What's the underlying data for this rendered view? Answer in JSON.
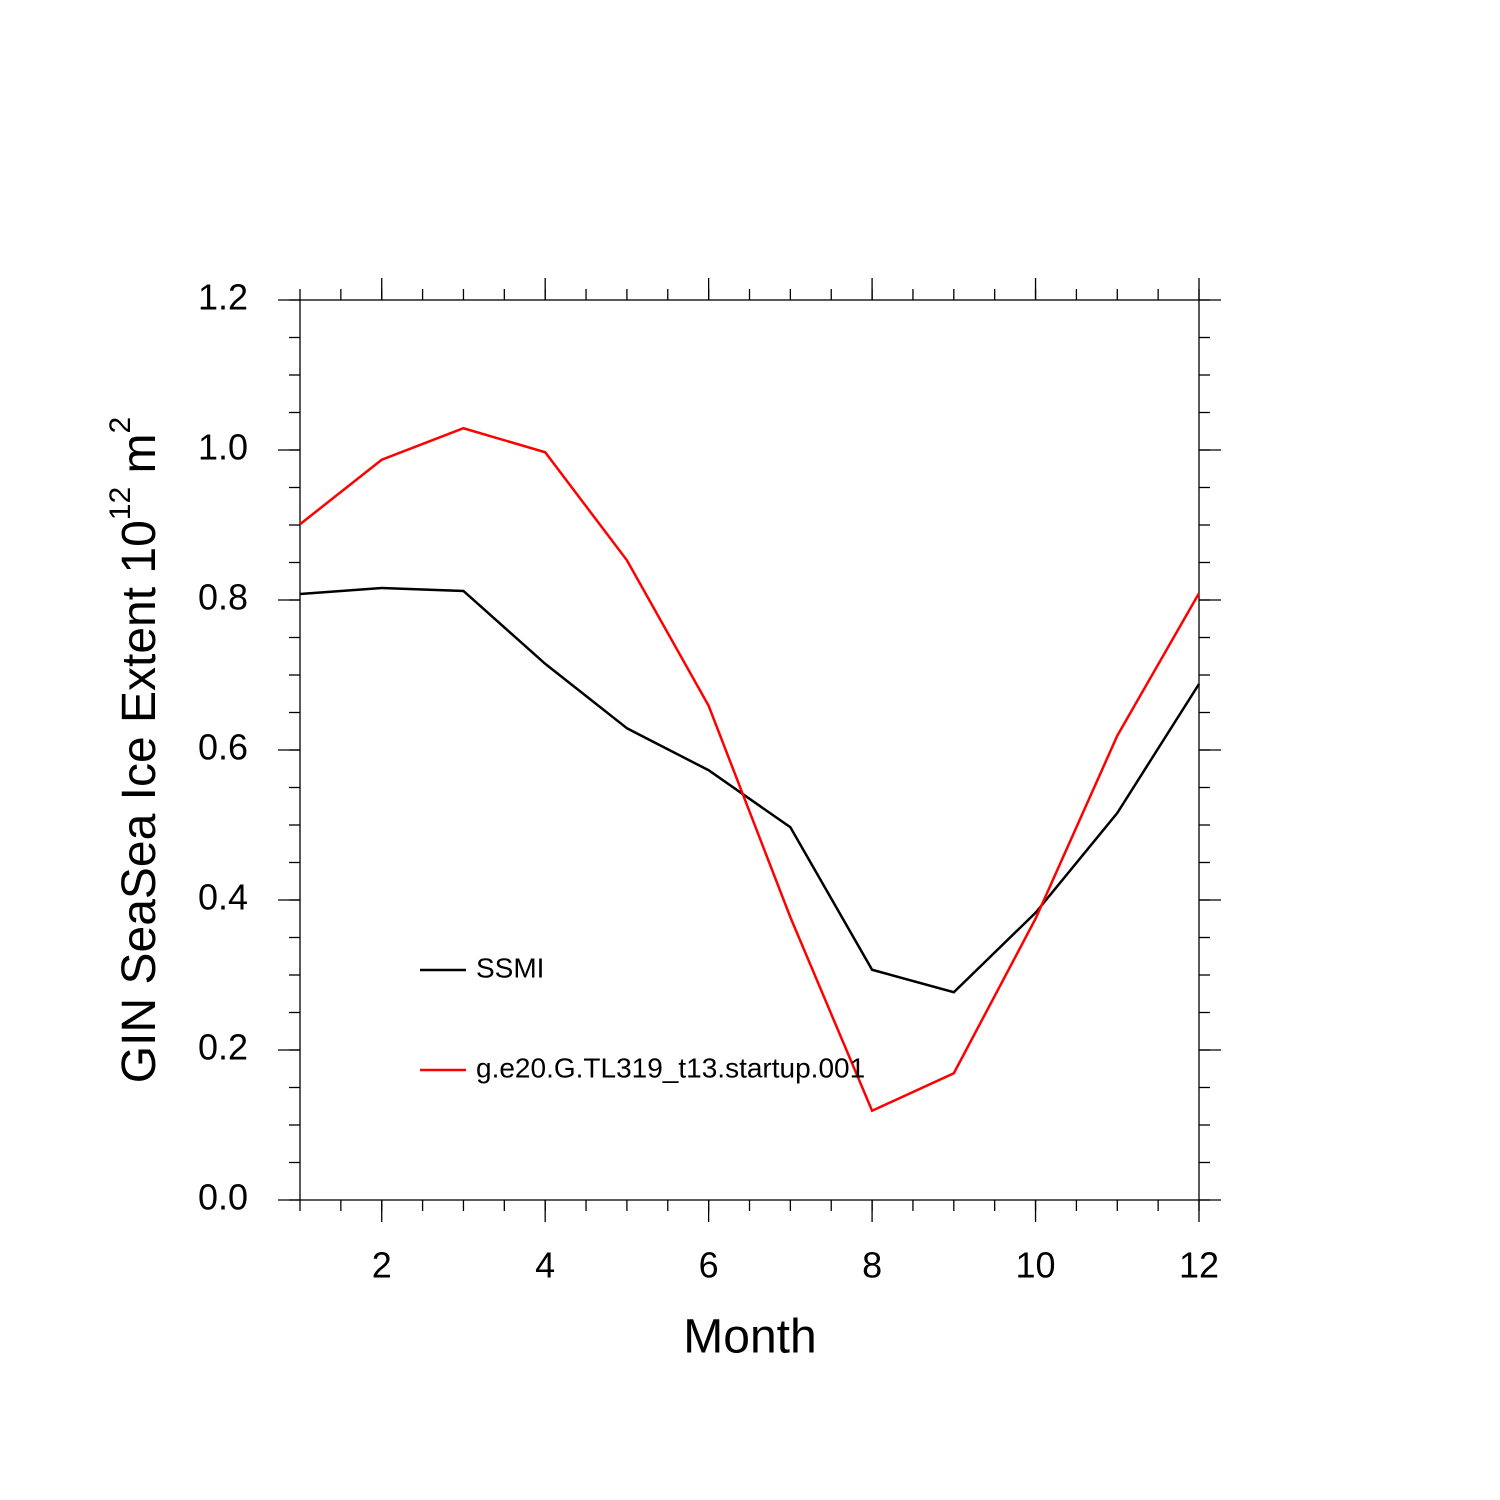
{
  "chart_data": {
    "type": "line",
    "xlabel": "Month",
    "ylabel": [
      "GIN SeaSea Ice Extent 10",
      "12",
      " m",
      "2"
    ],
    "x": [
      1,
      2,
      3,
      4,
      5,
      6,
      7,
      8,
      9,
      10,
      11,
      12
    ],
    "series": [
      {
        "name": "SSMI",
        "color": "#000000",
        "values": [
          0.808,
          0.816,
          0.812,
          0.715,
          0.629,
          0.573,
          0.497,
          0.307,
          0.277,
          0.383,
          0.516,
          0.688
        ]
      },
      {
        "name": "g.e20.G.TL319_t13.startup.001",
        "color": "#ff0000",
        "values": [
          0.901,
          0.987,
          1.029,
          0.997,
          0.853,
          0.659,
          0.377,
          0.119,
          0.169,
          0.375,
          0.619,
          0.809
        ]
      }
    ],
    "xlim": [
      1,
      12
    ],
    "xticks": [
      2,
      4,
      6,
      8,
      10,
      12
    ],
    "ylim": [
      0,
      1.2
    ],
    "yticks": [
      {
        "value": 0,
        "label": "0.0"
      },
      0.2,
      0.4,
      0.6,
      0.8,
      {
        "value": 1,
        "label": "1.0"
      },
      1.2
    ]
  }
}
